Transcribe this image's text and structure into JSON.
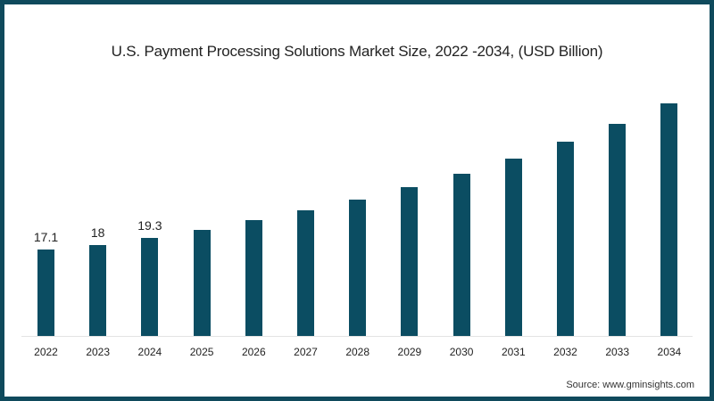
{
  "chart_data": {
    "type": "bar",
    "title": "U.S. Payment Processing Solutions Market Size, 2022 -2034, (USD Billion)",
    "xlabel": "",
    "ylabel": "",
    "categories": [
      "2022",
      "2023",
      "2024",
      "2025",
      "2026",
      "2027",
      "2028",
      "2029",
      "2030",
      "2031",
      "2032",
      "2033",
      "2034"
    ],
    "values": [
      17.1,
      18,
      19.3,
      20.9,
      22.9,
      24.8,
      26.9,
      29.4,
      32.0,
      35.0,
      38.4,
      41.9,
      45.9
    ],
    "data_labels": [
      "17.1",
      "18",
      "19.3",
      "",
      "",
      "",
      "",
      "",
      "",
      "",
      "",
      "",
      ""
    ],
    "ylim": [
      0,
      50
    ],
    "grid": false,
    "legend": "none",
    "bar_color": "#0b4d62"
  },
  "source": "Source: www.gminsights.com",
  "colors": {
    "border": "#0f4a5c",
    "bar": "#0b4d62"
  }
}
